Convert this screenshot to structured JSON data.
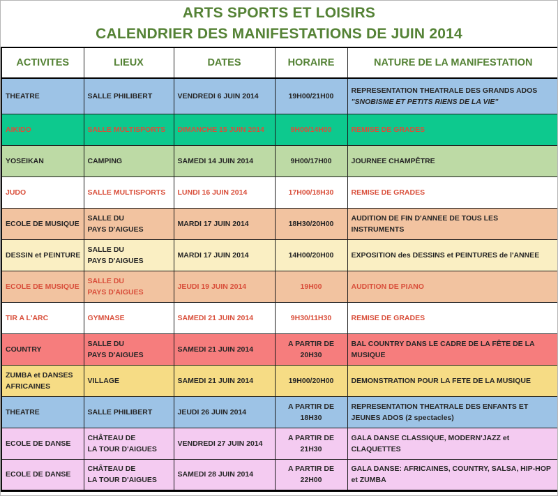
{
  "title": {
    "line1": "ARTS SPORTS ET LOISIRS",
    "line2": "CALENDRIER DES MANIFESTATIONS DE JUIN 2014"
  },
  "theme": {
    "title_color": "#548235",
    "header_color": "#548235",
    "dark_text": "#262626",
    "red_text": "#D94F3B",
    "grid_border": "#1a1a1a"
  },
  "table": {
    "headers": [
      "ACTIVITES",
      "LIEUX",
      "DATES",
      "HORAIRE",
      "NATURE DE LA MANIFESTATION"
    ],
    "rows": [
      {
        "activity": "THEATRE",
        "location": "SALLE PHILIBERT",
        "date": "VENDREDI 6 JUIN 2014",
        "time": "19H00/21H00",
        "nature": "REPRESENTATION THEATRALE DES GRANDS ADOS",
        "nature_quote": "\"SNOBISME ET PETITS RIENS DE LA VIE\"",
        "bg": "#9DC3E6",
        "text_color": "dark"
      },
      {
        "activity": "AIKIDO",
        "location": "SALLE MULTISPORTS",
        "date": "DIMANCHE 15 JUIN 2014",
        "time": "9H00/14H00",
        "nature": "REMISE DE GRADES",
        "bg": "#0DC98E",
        "text_color": "red"
      },
      {
        "activity": "YOSEIKAN",
        "location": "CAMPING",
        "date": "SAMEDI 14 JUIN 2014",
        "time": "9H00/17H00",
        "nature": "JOURNEE CHAMPÊTRE",
        "bg": "#BDDAA5",
        "text_color": "dark"
      },
      {
        "activity": "JUDO",
        "location": "SALLE MULTISPORTS",
        "date": "LUNDI 16 JUIN 2014",
        "time": "17H00/18H30",
        "nature": "REMISE DE GRADES",
        "bg": "#FFFFFF",
        "text_color": "red"
      },
      {
        "activity": "ECOLE DE MUSIQUE",
        "location": "SALLE DU\nPAYS D'AIGUES",
        "date": "MARDI 17 JUIN 2014",
        "time": "18H30/20H00",
        "nature": "AUDITION DE FIN D'ANNEE DE TOUS LES\nINSTRUMENTS",
        "bg": "#F2C3A0",
        "text_color": "dark"
      },
      {
        "activity": "DESSIN et PEINTURE",
        "location": "SALLE DU\nPAYS D'AIGUES",
        "date": "MARDI 17 JUIN 2014",
        "time": "14H00/20H00",
        "nature": "EXPOSITION des DESSINS et PEINTURES de l'ANNEE",
        "bg": "#FAEFC3",
        "text_color": "dark"
      },
      {
        "activity": "ECOLE DE MUSIQUE",
        "location": "SALLE DU\nPAYS D'AIGUES",
        "date": "JEUDI 19 JUIN 2014",
        "time": "19H00",
        "nature": "AUDITION DE PIANO",
        "bg": "#F2C3A0",
        "text_color": "red"
      },
      {
        "activity": "TIR A L'ARC",
        "location": "GYMNASE",
        "date": "SAMEDI 21 JUIN 2014",
        "time": "9H30/11H30",
        "nature": "REMISE DE GRADES",
        "bg": "#FFFFFF",
        "text_color": "red"
      },
      {
        "activity": "COUNTRY",
        "location": "SALLE DU\nPAYS D'AIGUES",
        "date": "SAMEDI 21 JUIN 2014",
        "time": "A PARTIR DE\n20H30",
        "nature": "BAL COUNTRY DANS LE CADRE DE LA FÊTE DE LA\nMUSIQUE",
        "bg": "#F67D7D",
        "text_color": "dark"
      },
      {
        "activity": "ZUMBA et DANSES\nAFRICAINES",
        "location": "VILLAGE",
        "date": "SAMEDI 21 JUIN 2014",
        "time": "19H00/20H00",
        "nature": "DEMONSTRATION POUR LA FETE DE LA MUSIQUE",
        "bg": "#F6DC85",
        "text_color": "dark"
      },
      {
        "activity": "THEATRE",
        "location": "SALLE PHILIBERT",
        "date": "JEUDI 26 JUIN 2014",
        "time": "A PARTIR DE\n18H30",
        "nature": "REPRESENTATION THEATRALE DES ENFANTS ET\nJEUNES ADOS (2 spectacles)",
        "bg": "#9DC3E6",
        "text_color": "dark"
      },
      {
        "activity": "ECOLE DE DANSE",
        "location": "CHÂTEAU DE\nLA TOUR D'AIGUES",
        "date": "VENDREDI 27 JUIN 2014",
        "time": "A PARTIR DE\n21H30",
        "nature": "GALA DANSE CLASSIQUE, MODERN'JAZZ et\nCLAQUETTES",
        "bg": "#F4CBF1",
        "text_color": "dark"
      },
      {
        "activity": "ECOLE DE DANSE",
        "location": "CHÂTEAU DE\nLA TOUR D'AIGUES",
        "date": "SAMEDI 28 JUIN 2014",
        "time": "A PARTIR DE\n22H00",
        "nature": "GALA DANSE: AFRICAINES, COUNTRY, SALSA, HIP-HOP\net ZUMBA",
        "bg": "#F4CBF1",
        "text_color": "dark"
      }
    ]
  }
}
